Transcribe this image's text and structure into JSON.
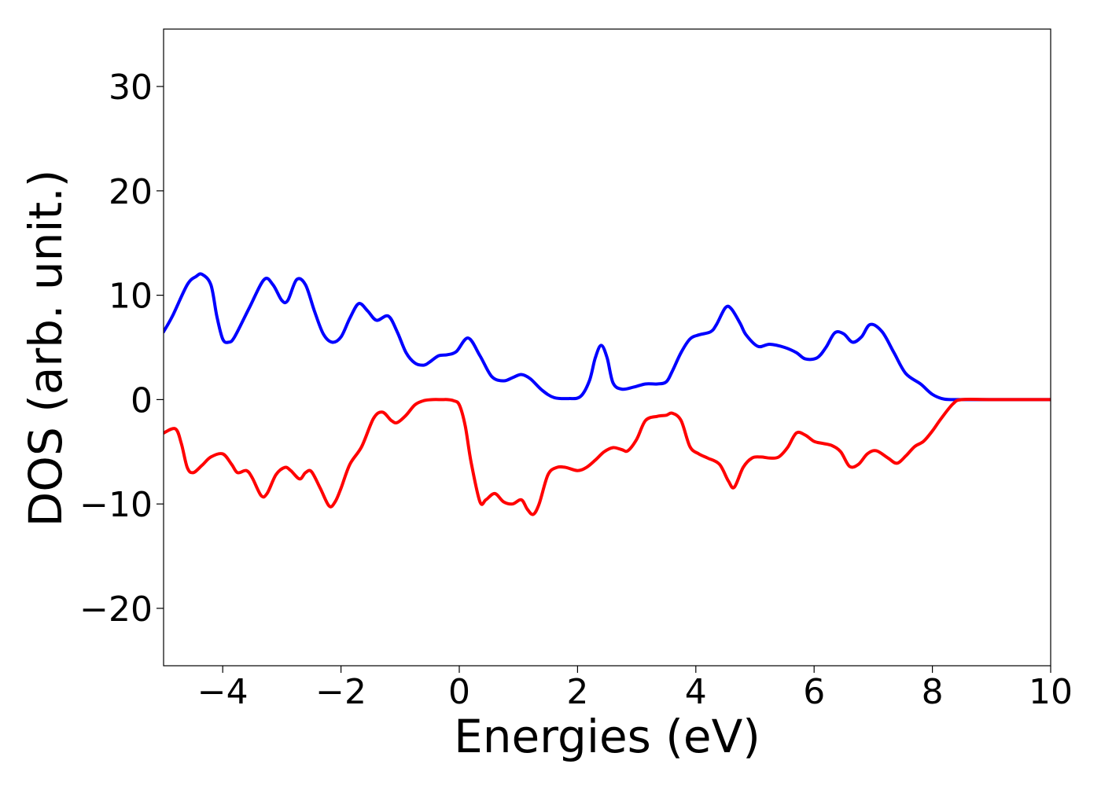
{
  "chart_data": {
    "type": "line",
    "title": "",
    "xlabel": "Energies (eV)",
    "ylabel": "DOS (arb. unit.)",
    "xlim": [
      -5,
      10
    ],
    "ylim": [
      -25.5,
      35.5
    ],
    "xticks": [
      -4,
      -2,
      0,
      2,
      4,
      6,
      8,
      10
    ],
    "xtick_labels": [
      "−4",
      "−2",
      "0",
      "2",
      "4",
      "6",
      "8",
      "10"
    ],
    "yticks": [
      -20,
      -10,
      0,
      10,
      20,
      30
    ],
    "ytick_labels": [
      "−20",
      "−10",
      "0",
      "10",
      "20",
      "30"
    ],
    "grid": false,
    "legend": "none",
    "series": [
      {
        "color": "#0000ff",
        "x": [
          -5.0,
          -4.85,
          -4.6,
          -4.45,
          -4.35,
          -4.2,
          -4.1,
          -4.0,
          -3.9,
          -3.8,
          -3.55,
          -3.3,
          -3.15,
          -3.0,
          -2.9,
          -2.75,
          -2.6,
          -2.45,
          -2.3,
          -2.15,
          -2.0,
          -1.85,
          -1.7,
          -1.55,
          -1.4,
          -1.2,
          -1.05,
          -0.9,
          -0.75,
          -0.6,
          -0.5,
          -0.35,
          -0.2,
          -0.05,
          0.15,
          0.35,
          0.55,
          0.75,
          0.9,
          1.05,
          1.2,
          1.4,
          1.6,
          1.85,
          2.05,
          2.2,
          2.3,
          2.4,
          2.5,
          2.6,
          2.75,
          2.95,
          3.15,
          3.35,
          3.5,
          3.6,
          3.75,
          3.9,
          4.05,
          4.25,
          4.35,
          4.5,
          4.6,
          4.75,
          4.85,
          5.05,
          5.25,
          5.5,
          5.7,
          5.85,
          6.05,
          6.2,
          6.35,
          6.5,
          6.65,
          6.8,
          6.95,
          7.15,
          7.35,
          7.55,
          7.8,
          8.0,
          8.2,
          8.5,
          9.0,
          10.0
        ],
        "y": [
          6.5,
          8.0,
          11.0,
          11.8,
          12.0,
          11.0,
          8.0,
          5.8,
          5.5,
          6.0,
          8.8,
          11.5,
          11.0,
          9.5,
          9.5,
          11.5,
          11.0,
          8.5,
          6.3,
          5.5,
          6.0,
          7.8,
          9.2,
          8.5,
          7.6,
          8.0,
          6.5,
          4.5,
          3.5,
          3.3,
          3.6,
          4.2,
          4.3,
          4.6,
          5.9,
          4.2,
          2.2,
          1.8,
          2.1,
          2.4,
          2.0,
          0.9,
          0.2,
          0.1,
          0.3,
          1.8,
          4.0,
          5.2,
          4.0,
          1.6,
          1.0,
          1.2,
          1.5,
          1.5,
          1.7,
          2.7,
          4.5,
          5.8,
          6.2,
          6.5,
          7.2,
          8.8,
          8.7,
          7.3,
          6.2,
          5.1,
          5.3,
          5.0,
          4.5,
          3.9,
          4.0,
          5.0,
          6.4,
          6.3,
          5.5,
          6.0,
          7.2,
          6.5,
          4.5,
          2.5,
          1.5,
          0.5,
          0.05,
          0.0,
          0.0,
          0.0
        ]
      },
      {
        "color": "#ff0000",
        "x": [
          -5.0,
          -4.8,
          -4.7,
          -4.6,
          -4.5,
          -4.35,
          -4.2,
          -4.0,
          -3.85,
          -3.75,
          -3.6,
          -3.5,
          -3.35,
          -3.25,
          -3.1,
          -2.95,
          -2.85,
          -2.7,
          -2.6,
          -2.5,
          -2.35,
          -2.2,
          -2.1,
          -2.0,
          -1.85,
          -1.65,
          -1.45,
          -1.3,
          -1.15,
          -1.05,
          -0.9,
          -0.75,
          -0.6,
          -0.45,
          -0.3,
          -0.2,
          -0.1,
          0.0,
          0.1,
          0.2,
          0.35,
          0.45,
          0.6,
          0.75,
          0.9,
          1.05,
          1.15,
          1.25,
          1.35,
          1.5,
          1.65,
          1.8,
          2.0,
          2.15,
          2.3,
          2.45,
          2.6,
          2.75,
          2.85,
          3.0,
          3.15,
          3.35,
          3.5,
          3.6,
          3.75,
          3.9,
          4.05,
          4.2,
          4.4,
          4.55,
          4.65,
          4.8,
          4.95,
          5.1,
          5.25,
          5.4,
          5.55,
          5.7,
          5.85,
          6.0,
          6.15,
          6.3,
          6.45,
          6.6,
          6.75,
          6.9,
          7.05,
          7.25,
          7.4,
          7.55,
          7.7,
          7.85,
          8.0,
          8.15,
          8.35,
          8.5,
          9.0,
          10.0
        ],
        "y": [
          -3.2,
          -2.8,
          -4.2,
          -6.5,
          -7.0,
          -6.3,
          -5.5,
          -5.2,
          -6.2,
          -7.0,
          -6.8,
          -7.5,
          -9.2,
          -9.0,
          -7.2,
          -6.5,
          -6.8,
          -7.6,
          -7.0,
          -6.9,
          -8.5,
          -10.2,
          -9.8,
          -8.5,
          -6.2,
          -4.5,
          -1.8,
          -1.2,
          -2.0,
          -2.2,
          -1.5,
          -0.5,
          -0.1,
          0.0,
          0.0,
          0.0,
          -0.1,
          -0.5,
          -2.5,
          -6.0,
          -9.8,
          -9.6,
          -9.0,
          -9.8,
          -10.0,
          -9.6,
          -10.5,
          -11.0,
          -10.0,
          -7.2,
          -6.5,
          -6.5,
          -6.8,
          -6.5,
          -5.8,
          -5.0,
          -4.6,
          -4.8,
          -4.9,
          -3.8,
          -2.0,
          -1.6,
          -1.5,
          -1.3,
          -2.0,
          -4.5,
          -5.2,
          -5.6,
          -6.2,
          -7.8,
          -8.4,
          -6.5,
          -5.6,
          -5.5,
          -5.6,
          -5.5,
          -4.6,
          -3.2,
          -3.4,
          -4.0,
          -4.2,
          -4.4,
          -5.0,
          -6.4,
          -6.2,
          -5.2,
          -4.9,
          -5.6,
          -6.1,
          -5.4,
          -4.5,
          -4.0,
          -3.0,
          -1.8,
          -0.4,
          0.0,
          0.0,
          0.0
        ]
      }
    ]
  }
}
